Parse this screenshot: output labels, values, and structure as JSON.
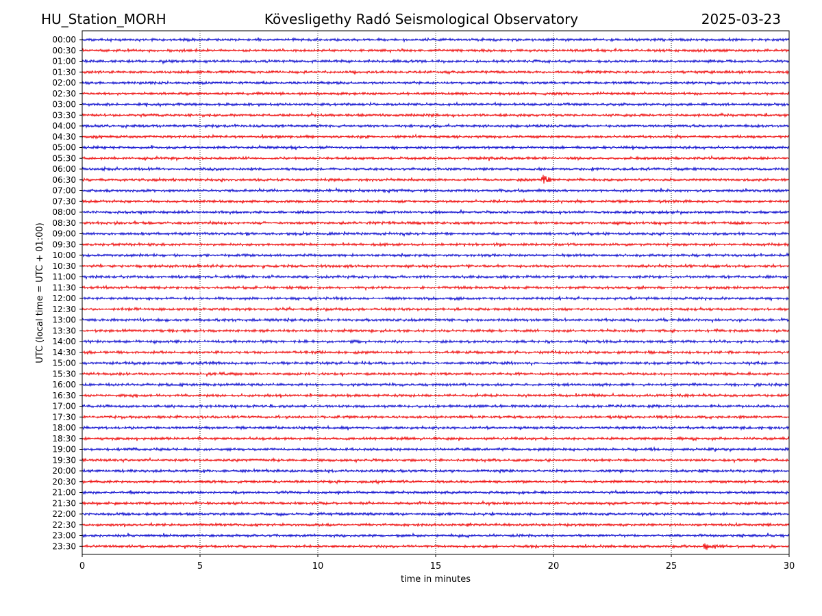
{
  "header": {
    "station": "HU_Station_MORH",
    "observatory": "Kövesligethy Radó Seismological Observatory",
    "date": "2025-03-23"
  },
  "chart_data": {
    "type": "line",
    "subtype": "helicorder",
    "title": "Kövesligethy Radó Seismological Observatory",
    "xlabel": "time in minutes",
    "ylabel": "UTC (local time = UTC + 01:00)",
    "xlim": [
      0,
      30
    ],
    "xticks": [
      0,
      5,
      10,
      15,
      20,
      25,
      30
    ],
    "vertical_gridlines": true,
    "gridline_style": "dotted",
    "trace_colors": [
      "#0000cc",
      "#ee0000"
    ],
    "rows": [
      "00:00",
      "00:30",
      "01:00",
      "01:30",
      "02:00",
      "02:30",
      "03:00",
      "03:30",
      "04:00",
      "04:30",
      "05:00",
      "05:30",
      "06:00",
      "06:30",
      "07:00",
      "07:30",
      "08:00",
      "08:30",
      "09:00",
      "09:30",
      "10:00",
      "10:30",
      "11:00",
      "11:30",
      "12:00",
      "12:30",
      "13:00",
      "13:30",
      "14:00",
      "14:30",
      "15:00",
      "15:30",
      "16:00",
      "16:30",
      "17:00",
      "17:30",
      "18:00",
      "18:30",
      "19:00",
      "19:30",
      "20:00",
      "20:30",
      "21:00",
      "21:30",
      "22:00",
      "22:30",
      "23:00",
      "23:30"
    ],
    "events": [
      {
        "row": "06:30",
        "minute": 19.5,
        "amplitude": "moderate"
      },
      {
        "row": "23:30",
        "minute": 26.4,
        "amplitude": "moderate"
      }
    ]
  }
}
